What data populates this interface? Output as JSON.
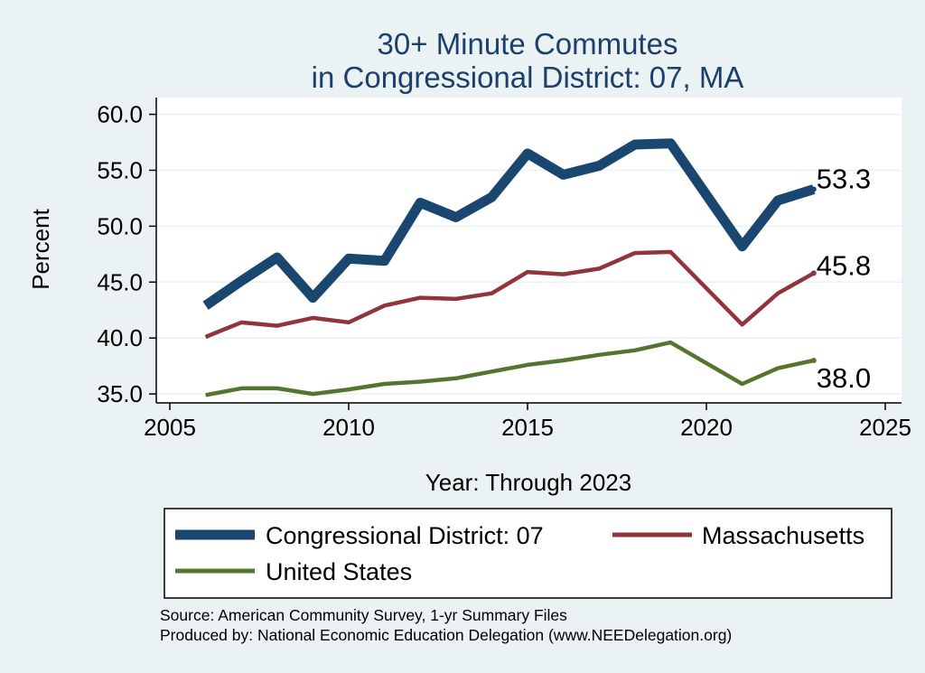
{
  "title_line1": "30+ Minute Commutes",
  "title_line2": "in Congressional District:  07, MA",
  "source_line1": "Source: American Community Survey, 1-yr Summary Files",
  "source_line2": "Produced by: National Economic Education Delegation (www.NEEDelegation.org)",
  "chart_data": {
    "type": "line",
    "title": "30+ Minute Commutes in Congressional District:  07, MA",
    "xlabel": "Year: Through 2023",
    "ylabel": "Percent",
    "xlim": [
      2005,
      2025
    ],
    "ylim": [
      34.2,
      61.5
    ],
    "xticks": [
      2005,
      2010,
      2015,
      2020,
      2025
    ],
    "yticks": [
      35,
      40,
      45,
      50,
      55,
      60
    ],
    "ytick_labels": [
      "35.0",
      "40.0",
      "45.0",
      "50.0",
      "55.0",
      "60.0"
    ],
    "grid": true,
    "legend_position": "bottom",
    "series": [
      {
        "name": "Congressional District:  07",
        "color": "#1a476f",
        "end_label": "53.3",
        "x": [
          2006,
          2007,
          2008,
          2009,
          2010,
          2011,
          2012,
          2013,
          2014,
          2015,
          2016,
          2017,
          2018,
          2019,
          2021,
          2022,
          2023
        ],
        "values": [
          42.9,
          45.1,
          47.2,
          43.6,
          47.1,
          46.9,
          52.1,
          50.8,
          52.6,
          56.5,
          54.6,
          55.4,
          57.3,
          57.4,
          48.2,
          52.3,
          53.3
        ]
      },
      {
        "name": "Massachusetts",
        "color": "#90353b",
        "end_label": "45.8",
        "x": [
          2006,
          2007,
          2008,
          2009,
          2010,
          2011,
          2012,
          2013,
          2014,
          2015,
          2016,
          2017,
          2018,
          2019,
          2021,
          2022,
          2023
        ],
        "values": [
          40.1,
          41.4,
          41.1,
          41.8,
          41.4,
          42.9,
          43.6,
          43.5,
          44.0,
          45.9,
          45.7,
          46.2,
          47.6,
          47.7,
          41.2,
          44.0,
          45.8
        ]
      },
      {
        "name": "United States",
        "color": "#55752f",
        "end_label": "38.0",
        "x": [
          2006,
          2007,
          2008,
          2009,
          2010,
          2011,
          2012,
          2013,
          2014,
          2015,
          2016,
          2017,
          2018,
          2019,
          2021,
          2022,
          2023
        ],
        "values": [
          34.9,
          35.5,
          35.5,
          35.0,
          35.4,
          35.9,
          36.1,
          36.4,
          37.0,
          37.6,
          38.0,
          38.5,
          38.9,
          39.6,
          35.9,
          37.3,
          38.0
        ]
      }
    ]
  }
}
